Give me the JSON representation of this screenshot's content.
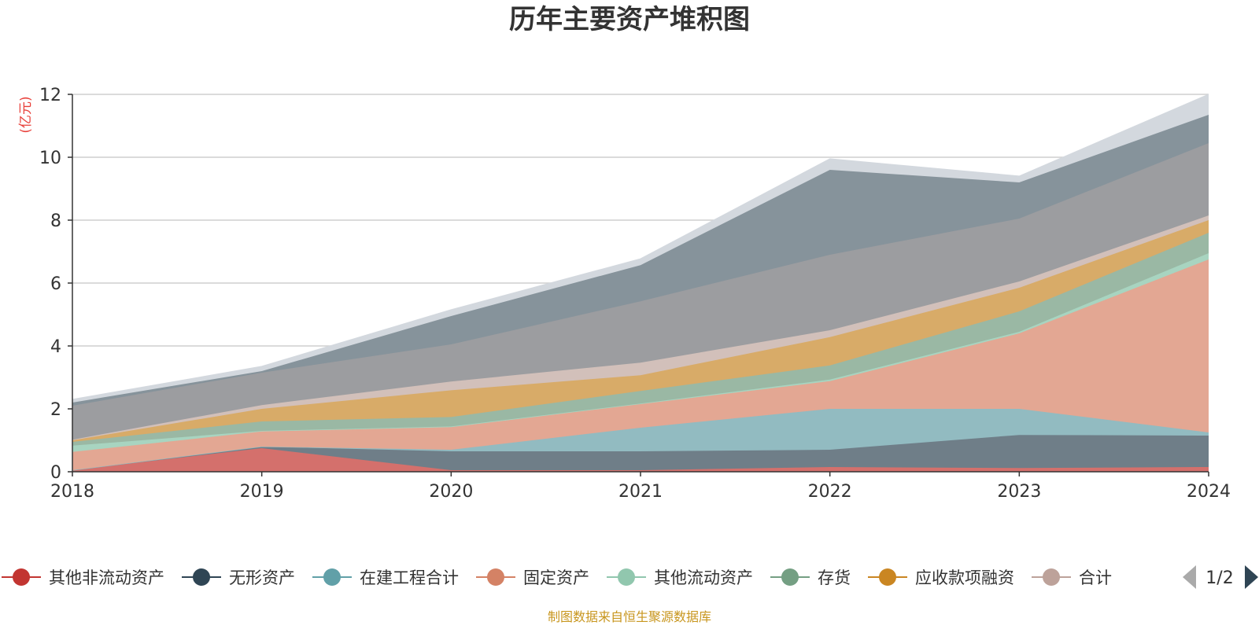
{
  "chart_data": {
    "type": "area",
    "stacked": true,
    "title": "历年主要资产堆积图",
    "ylabel": "(亿元)",
    "xlabel": "",
    "x": [
      "2018",
      "2019",
      "2020",
      "2021",
      "2022",
      "2023",
      "2024"
    ],
    "yticks": [
      "0",
      "2",
      "4",
      "6",
      "8",
      "10",
      "12"
    ],
    "ylim": [
      0,
      12
    ],
    "grid": true,
    "legend_position": "bottom",
    "legend_page": "1/2",
    "series": [
      {
        "name": "其他非流动资产",
        "color": "#c23531",
        "fill": "#d4706c",
        "values": [
          0.05,
          0.75,
          0.05,
          0.05,
          0.15,
          0.12,
          0.15
        ]
      },
      {
        "name": "无形资产",
        "color": "#2f4554",
        "fill": "#6f7e88",
        "values": [
          0.0,
          0.05,
          0.6,
          0.6,
          0.55,
          1.05,
          1.0
        ]
      },
      {
        "name": "在建工程合计",
        "color": "#61a0a8",
        "fill": "#92bbc1",
        "values": [
          0.0,
          0.0,
          0.05,
          0.75,
          1.3,
          0.83,
          0.1
        ]
      },
      {
        "name": "固定资产",
        "color": "#d48265",
        "fill": "#e3a793",
        "values": [
          0.58,
          0.48,
          0.72,
          0.75,
          0.88,
          2.4,
          5.5
        ]
      },
      {
        "name": "其他流动资产",
        "color": "#91c7ae",
        "fill": "#a8d4c0",
        "values": [
          0.2,
          0.02,
          0.02,
          0.02,
          0.05,
          0.05,
          0.2
        ]
      },
      {
        "name": "存货",
        "color": "#749f83",
        "fill": "#9ab8a4",
        "values": [
          0.12,
          0.3,
          0.3,
          0.4,
          0.45,
          0.65,
          0.65
        ]
      },
      {
        "name": "应收款项融资",
        "color": "#ca8622",
        "fill": "#d8ab68",
        "values": [
          0.05,
          0.4,
          0.85,
          0.5,
          0.9,
          0.75,
          0.4
        ]
      },
      {
        "name": "合计",
        "color": "#bda29a",
        "fill": "#d2c0ba",
        "values": [
          0.02,
          0.12,
          0.28,
          0.4,
          0.22,
          0.2,
          0.15
        ]
      },
      {
        "name": "",
        "color": "#6e7074",
        "fill": "#9c9da0",
        "values": [
          1.08,
          1.03,
          1.18,
          1.95,
          2.4,
          2.0,
          2.3
        ]
      },
      {
        "name": "",
        "color": "#546570",
        "fill": "#86939b",
        "values": [
          0.1,
          0.05,
          0.9,
          1.15,
          2.7,
          1.15,
          0.9
        ]
      },
      {
        "name": "",
        "color": "#c4ccd3",
        "fill": "#d3d8de",
        "values": [
          0.1,
          0.15,
          0.2,
          0.2,
          0.35,
          0.2,
          0.65
        ]
      }
    ]
  },
  "footer": {
    "source": "制图数据来自恒生聚源数据库"
  },
  "colors": {
    "unit_label": "#e8403a",
    "source_label": "#c8961e",
    "grid": "#cfcfcf",
    "axis": "#333333",
    "pager_active": "#2f4554",
    "pager_inactive": "#aaaaaa"
  },
  "icons": {
    "prev": "triangle-left-icon",
    "next": "triangle-right-icon"
  }
}
